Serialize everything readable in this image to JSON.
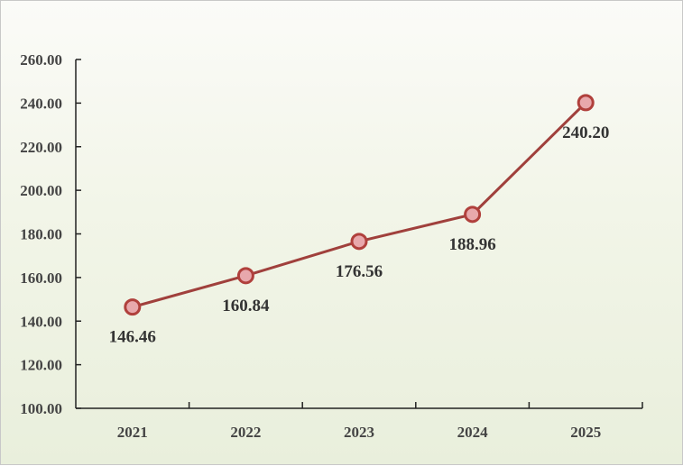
{
  "chart_data": {
    "type": "line",
    "categories": [
      "2021",
      "2022",
      "2023",
      "2024",
      "2025"
    ],
    "series": [
      {
        "values": [
          146.46,
          160.84,
          176.56,
          188.96,
          240.2
        ]
      }
    ],
    "data_labels": [
      "146.46",
      "160.84",
      "176.56",
      "188.96",
      "240.20"
    ],
    "y_ticks": [
      "100.00",
      "120.00",
      "140.00",
      "160.00",
      "180.00",
      "200.00",
      "220.00",
      "240.00",
      "260.00"
    ],
    "ylim": [
      100,
      260
    ],
    "grid": false,
    "legend": "none",
    "title": "",
    "xlabel": "",
    "ylabel": ""
  },
  "colors": {
    "line": "#a0403c",
    "marker_fill": "#e8a8ac",
    "marker_stroke": "#b0403c",
    "axis": "#222222"
  }
}
